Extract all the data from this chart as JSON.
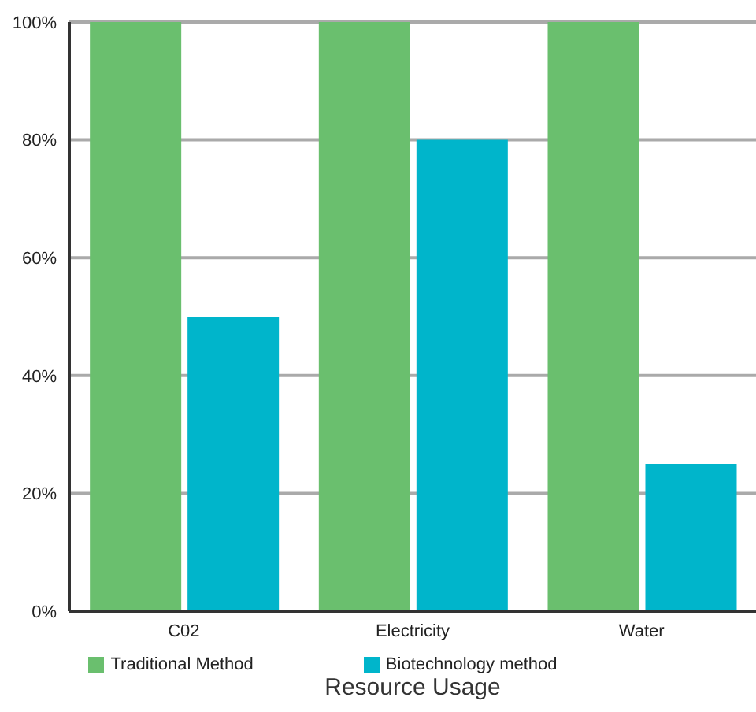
{
  "chart_data": {
    "type": "bar",
    "xlabel": "Resource Usage",
    "categories": [
      "C02",
      "Electricity",
      "Water"
    ],
    "series": [
      {
        "name": "Traditional Method",
        "color": "#6abf6e",
        "values": [
          100,
          100,
          100
        ]
      },
      {
        "name": "Biotechnology method",
        "color": "#00b5cb",
        "values": [
          50,
          80,
          25
        ]
      }
    ],
    "ylim": [
      0,
      100
    ],
    "yticks": [
      {
        "value": 0,
        "label": "0%"
      },
      {
        "value": 20,
        "label": "20%"
      },
      {
        "value": 40,
        "label": "40%"
      },
      {
        "value": 60,
        "label": "60%"
      },
      {
        "value": 80,
        "label": "80%"
      },
      {
        "value": 100,
        "label": "100%"
      }
    ],
    "grid": "y",
    "legend": "bottom"
  }
}
